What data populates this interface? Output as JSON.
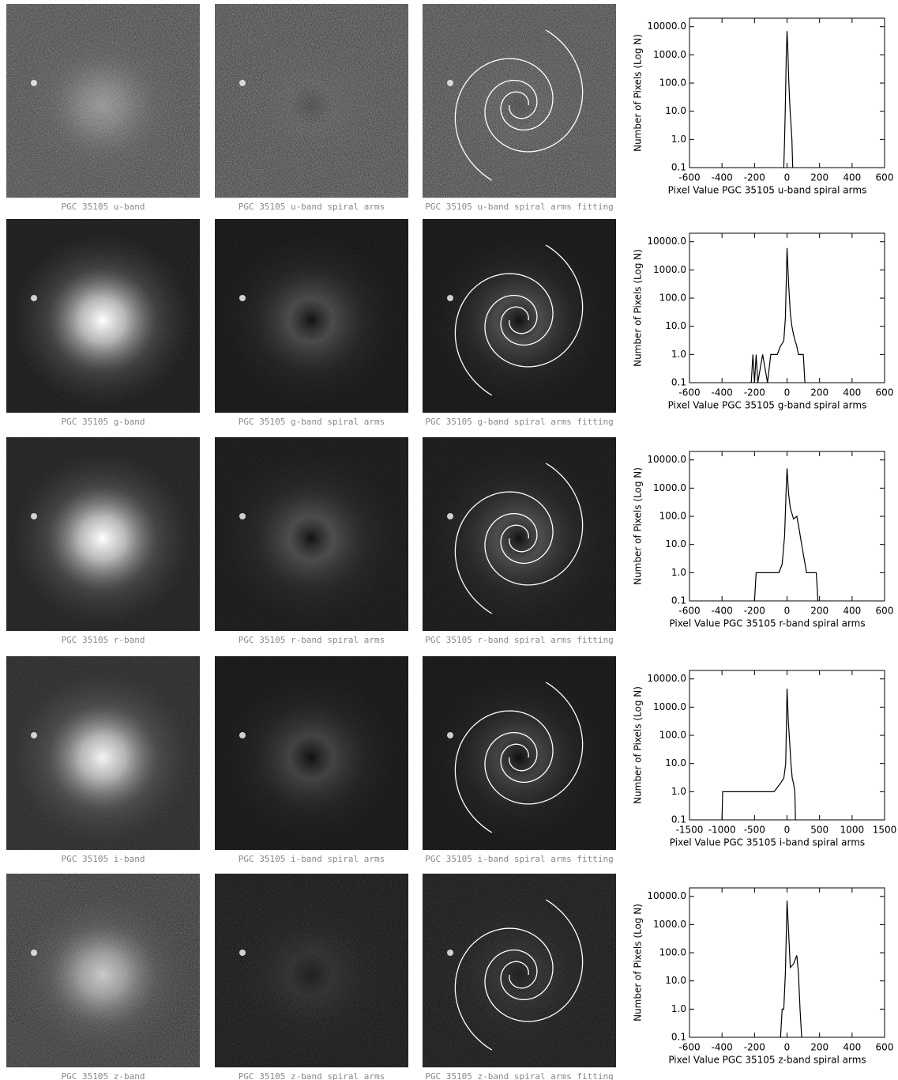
{
  "panels": {
    "rows": [
      {
        "captions": [
          "PGC 35105 u-band",
          "PGC 35105 u-band spiral arms",
          "PGC 35105 u-band spiral arms fitting"
        ]
      },
      {
        "captions": [
          "PGC 35105 g-band",
          "PGC 35105 g-band spiral arms",
          "PGC 35105 g-band spiral arms fitting"
        ]
      },
      {
        "captions": [
          "PGC 35105 r-band",
          "PGC 35105 r-band spiral arms",
          "PGC 35105 r-band spiral arms fitting"
        ]
      },
      {
        "captions": [
          "PGC 35105 i-band",
          "PGC 35105 i-band spiral arms",
          "PGC 35105 i-band spiral arms fitting"
        ]
      },
      {
        "captions": [
          "PGC 35105 z-band",
          "PGC 35105 z-band spiral arms",
          "PGC 35105 z-band spiral arms fitting"
        ]
      }
    ]
  },
  "chart_data": [
    {
      "type": "line",
      "x_label": "Pixel Value PGC 35105 u-band spiral arms",
      "y_label": "Number of Pixels (Log N)",
      "color": "#000000",
      "log_y": true,
      "x": [
        -20,
        -15,
        -10,
        -5,
        0,
        5,
        10,
        15,
        20,
        25,
        30,
        35
      ],
      "values": [
        0.1,
        1,
        20,
        800,
        7000,
        1500,
        150,
        30,
        8,
        3,
        1,
        0.1
      ],
      "xlim": [
        -600,
        600
      ],
      "xticks": [
        -600,
        -400,
        -200,
        0,
        200,
        400,
        600
      ],
      "ylim": [
        0.1,
        20000
      ],
      "yticks": [
        0.1,
        {
          "value": 1,
          "label": "1.0"
        },
        {
          "value": 10,
          "label": "10.0"
        },
        {
          "value": 100,
          "label": "100.0"
        },
        {
          "value": 1000,
          "label": "1000.0"
        },
        {
          "value": 10000,
          "label": "10000.0"
        }
      ]
    },
    {
      "type": "line",
      "x_label": "Pixel Value PGC 35105 g-band spiral arms",
      "y_label": "Number of Pixels (Log N)",
      "color": "#000000",
      "log_y": true,
      "x": [
        -220,
        -210,
        -200,
        -190,
        -180,
        -150,
        -120,
        -100,
        -80,
        -60,
        -40,
        -20,
        -10,
        0,
        10,
        20,
        30,
        40,
        50,
        60,
        70,
        80,
        90,
        100,
        110
      ],
      "values": [
        0.1,
        1,
        0.1,
        1,
        0.1,
        1,
        0.1,
        1,
        1,
        1,
        2,
        3,
        20,
        6000,
        300,
        30,
        10,
        5,
        3,
        2,
        1,
        1,
        1,
        1,
        0.1
      ],
      "xlim": [
        -600,
        600
      ],
      "xticks": [
        -600,
        -400,
        -200,
        0,
        200,
        400,
        600
      ],
      "ylim": [
        0.1,
        20000
      ],
      "yticks": [
        0.1,
        {
          "value": 1,
          "label": "1.0"
        },
        {
          "value": 10,
          "label": "10.0"
        },
        {
          "value": 100,
          "label": "100.0"
        },
        {
          "value": 1000,
          "label": "1000.0"
        },
        {
          "value": 10000,
          "label": "10000.0"
        }
      ]
    },
    {
      "type": "line",
      "x_label": "Pixel Value PGC 35105 r-band spiral arms",
      "y_label": "Number of Pixels (Log N)",
      "color": "#000000",
      "log_y": true,
      "x": [
        -200,
        -190,
        -170,
        -150,
        -120,
        -100,
        -80,
        -50,
        -30,
        -15,
        -5,
        0,
        10,
        20,
        40,
        60,
        70,
        90,
        120,
        150,
        180,
        190
      ],
      "values": [
        0.1,
        1,
        1,
        1,
        1,
        1,
        1,
        1,
        2,
        20,
        1000,
        5000,
        600,
        200,
        80,
        100,
        50,
        10,
        1,
        1,
        1,
        0.1
      ],
      "xlim": [
        -600,
        600
      ],
      "xticks": [
        -600,
        -400,
        -200,
        0,
        200,
        400,
        600
      ],
      "ylim": [
        0.1,
        20000
      ],
      "yticks": [
        0.1,
        {
          "value": 1,
          "label": "1.0"
        },
        {
          "value": 10,
          "label": "10.0"
        },
        {
          "value": 100,
          "label": "100.0"
        },
        {
          "value": 1000,
          "label": "1000.0"
        },
        {
          "value": 10000,
          "label": "10000.0"
        }
      ]
    },
    {
      "type": "line",
      "x_label": "Pixel Value PGC 35105 i-band spiral arms",
      "y_label": "Number of Pixels (Log N)",
      "color": "#000000",
      "log_y": true,
      "x": [
        -1000,
        -990,
        -900,
        -800,
        -700,
        -600,
        -500,
        -400,
        -300,
        -200,
        -100,
        -50,
        -20,
        0,
        20,
        40,
        60,
        80,
        100,
        120,
        130
      ],
      "values": [
        0.1,
        1,
        1,
        1,
        1,
        1,
        1,
        1,
        1,
        1,
        2,
        3,
        10,
        4500,
        300,
        60,
        10,
        3,
        2,
        1,
        0.1
      ],
      "xlim": [
        -1500,
        1500
      ],
      "xticks": [
        -1500,
        -1000,
        -500,
        0,
        500,
        1000,
        1500
      ],
      "ylim": [
        0.1,
        20000
      ],
      "yticks": [
        0.1,
        {
          "value": 1,
          "label": "1.0"
        },
        {
          "value": 10,
          "label": "10.0"
        },
        {
          "value": 100,
          "label": "100.0"
        },
        {
          "value": 1000,
          "label": "1000.0"
        },
        {
          "value": 10000,
          "label": "10000.0"
        }
      ]
    },
    {
      "type": "line",
      "x_label": "Pixel Value PGC 35105 z-band spiral arms",
      "y_label": "Number of Pixels (Log N)",
      "color": "#000000",
      "log_y": true,
      "x": [
        -40,
        -30,
        -20,
        -10,
        0,
        10,
        20,
        40,
        60,
        70,
        80,
        90
      ],
      "values": [
        0.1,
        1,
        1,
        20,
        7000,
        500,
        30,
        40,
        80,
        20,
        1,
        0.1
      ],
      "xlim": [
        -600,
        600
      ],
      "xticks": [
        -600,
        -400,
        -200,
        0,
        200,
        400,
        600
      ],
      "ylim": [
        0.1,
        20000
      ],
      "yticks": [
        0.1,
        {
          "value": 1,
          "label": "1.0"
        },
        {
          "value": 10,
          "label": "10.0"
        },
        {
          "value": 100,
          "label": "100.0"
        },
        {
          "value": 1000,
          "label": "1000.0"
        },
        {
          "value": 10000,
          "label": "10000.0"
        }
      ]
    }
  ]
}
